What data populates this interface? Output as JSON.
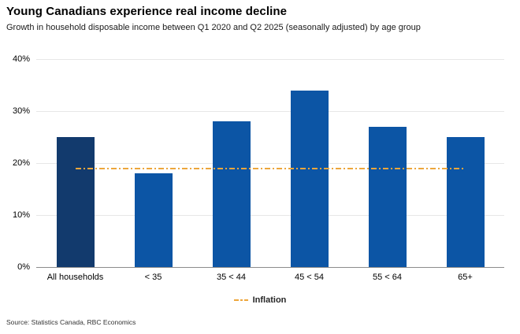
{
  "header": {
    "title": "Young Canadians experience real income decline",
    "subtitle": "Growth in household disposable income between Q1 2020 and Q2 2025 (seasonally adjusted) by age group"
  },
  "legend": {
    "label": "Inflation",
    "marker": "dash-dot-line-icon",
    "color": "#EDA63C"
  },
  "source": "Source: Statistics Canada, RBC Economics",
  "colors": {
    "bar_highlight": "#123A6D",
    "bar_default": "#0C55A5",
    "reference_line": "#EDA63C",
    "gridline": "#E7E7E7",
    "axis_line": "#8C8C8C"
  },
  "chart_data": {
    "type": "bar",
    "title": "Young Canadians experience real income decline",
    "subtitle": "Growth in household disposable income between Q1 2020 and Q2 2025 (seasonally adjusted) by age group",
    "categories": [
      "All households",
      "< 35",
      "35 < 44",
      "45 < 54",
      "55 < 64",
      "65+"
    ],
    "values": [
      25,
      18,
      28,
      34,
      27,
      25
    ],
    "bar_colors": [
      "#123A6D",
      "#0C55A5",
      "#0C55A5",
      "#0C55A5",
      "#0C55A5",
      "#0C55A5"
    ],
    "ylim": [
      0,
      40
    ],
    "ytick_step": 10,
    "ytick_labels": [
      "0%",
      "10%",
      "20%",
      "30%",
      "40%"
    ],
    "grid": true,
    "legend_position": "bottom",
    "reference_line": {
      "name": "Inflation",
      "value": 19,
      "style": "dash-dot",
      "color": "#EDA63C"
    }
  }
}
